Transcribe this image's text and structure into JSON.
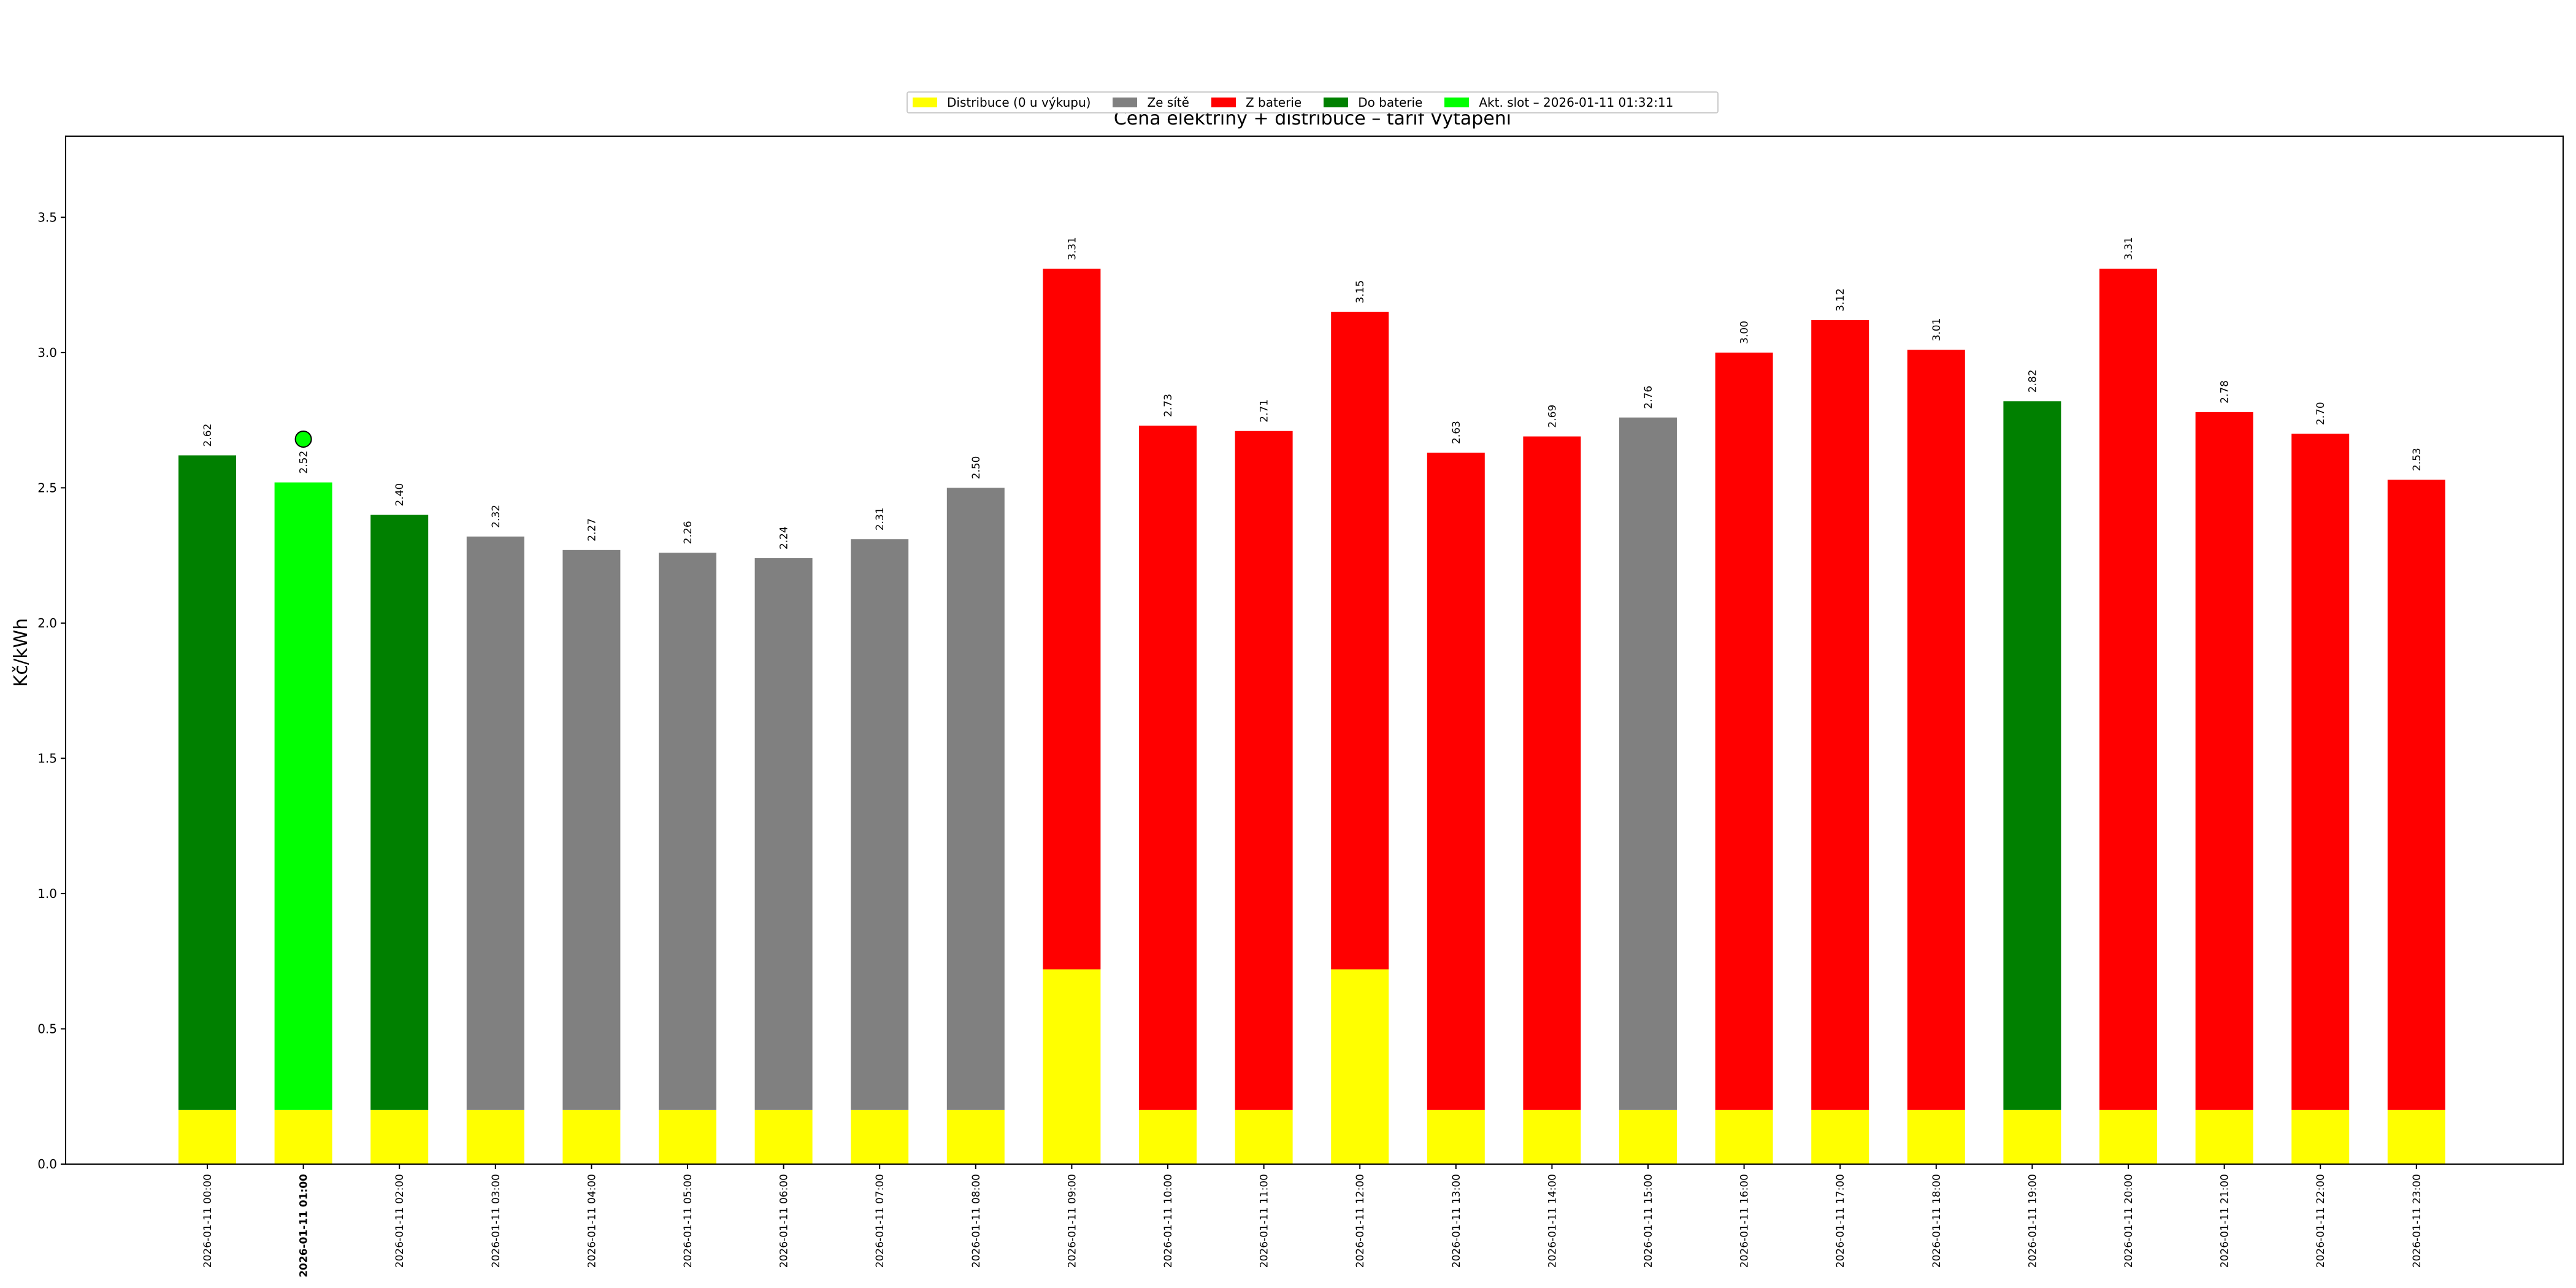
{
  "chart_data": {
    "type": "bar",
    "title": "Cena elektřiny + distribuce – tarif Vytápění",
    "xlabel": "",
    "ylabel": "Kč/kWh",
    "ylim": [
      0,
      3.8
    ],
    "yticks": [
      "0.0",
      "0.5",
      "1.0",
      "1.5",
      "2.0",
      "2.5",
      "3.0",
      "3.5"
    ],
    "grid": false,
    "legend_placement": "top-center",
    "categories": [
      "2026-01-11 00:00",
      "2026-01-11 01:00",
      "2026-01-11 02:00",
      "2026-01-11 03:00",
      "2026-01-11 04:00",
      "2026-01-11 05:00",
      "2026-01-11 06:00",
      "2026-01-11 07:00",
      "2026-01-11 08:00",
      "2026-01-11 09:00",
      "2026-01-11 10:00",
      "2026-01-11 11:00",
      "2026-01-11 12:00",
      "2026-01-11 13:00",
      "2026-01-11 14:00",
      "2026-01-11 15:00",
      "2026-01-11 16:00",
      "2026-01-11 17:00",
      "2026-01-11 18:00",
      "2026-01-11 19:00",
      "2026-01-11 20:00",
      "2026-01-11 21:00",
      "2026-01-11 22:00",
      "2026-01-11 23:00"
    ],
    "distribution": [
      0.2,
      0.2,
      0.2,
      0.2,
      0.2,
      0.2,
      0.2,
      0.2,
      0.2,
      0.72,
      0.2,
      0.2,
      0.72,
      0.2,
      0.2,
      0.2,
      0.2,
      0.2,
      0.2,
      0.2,
      0.2,
      0.2,
      0.2,
      0.2
    ],
    "totals": [
      2.62,
      2.52,
      2.4,
      2.32,
      2.27,
      2.26,
      2.24,
      2.31,
      2.5,
      3.31,
      2.73,
      2.71,
      3.15,
      2.63,
      2.69,
      2.76,
      3.0,
      3.12,
      3.01,
      2.82,
      3.31,
      2.78,
      2.7,
      2.53
    ],
    "labels": [
      "2.62",
      "2.52",
      "2.40",
      "2.32",
      "2.27",
      "2.26",
      "2.24",
      "2.31",
      "2.50",
      "3.31",
      "2.73",
      "2.71",
      "3.15",
      "2.63",
      "2.69",
      "2.76",
      "3.00",
      "3.12",
      "3.01",
      "2.82",
      "3.31",
      "2.78",
      "2.70",
      "2.53"
    ],
    "mode": [
      "do_baterie",
      "akt",
      "do_baterie",
      "ze_site",
      "ze_site",
      "ze_site",
      "ze_site",
      "ze_site",
      "ze_site",
      "z_baterie",
      "z_baterie",
      "z_baterie",
      "z_baterie",
      "z_baterie",
      "z_baterie",
      "ze_site",
      "z_baterie",
      "z_baterie",
      "z_baterie",
      "do_baterie",
      "z_baterie",
      "z_baterie",
      "z_baterie",
      "z_baterie"
    ],
    "current_index": 1,
    "current_marker_value": 2.68,
    "legend": [
      {
        "key": "distribuce",
        "label": "Distribuce (0 u výkupu)",
        "color": "#ffff00"
      },
      {
        "key": "ze_site",
        "label": "Ze sítě",
        "color": "#808080"
      },
      {
        "key": "z_baterie",
        "label": "Z baterie",
        "color": "#ff0000"
      },
      {
        "key": "do_baterie",
        "label": "Do baterie",
        "color": "#008000"
      },
      {
        "key": "akt",
        "label": "Akt. slot – 2026-01-11 01:32:11",
        "color": "#00ff00"
      }
    ]
  }
}
